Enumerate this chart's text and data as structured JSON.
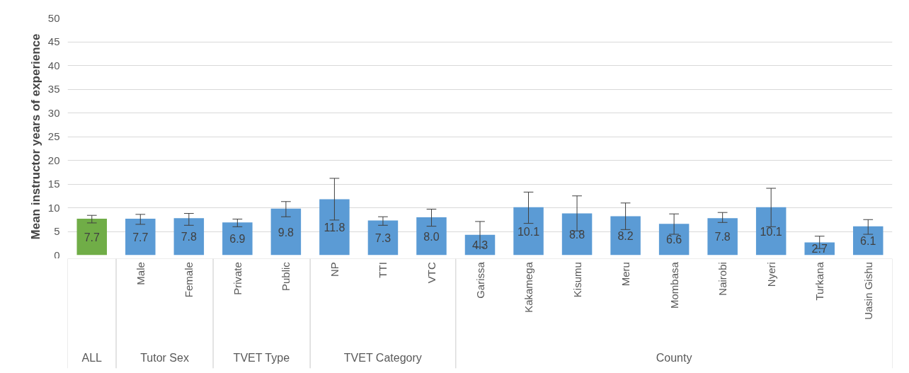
{
  "chart_data": {
    "type": "bar",
    "ylabel": "Mean instructor years of experience",
    "categories": [
      null,
      "Male",
      "Female",
      "Private",
      "Public",
      "NP",
      "TTI",
      "VTC",
      "Garissa",
      "Kakamega",
      "Kisumu",
      "Meru",
      "Mombasa",
      "Nairobi",
      "Nyeri",
      "Turkana",
      "Uasin Gishu"
    ],
    "values": [
      7.7,
      7.7,
      7.8,
      6.9,
      9.8,
      11.8,
      7.3,
      8.0,
      4.3,
      10.1,
      8.8,
      8.2,
      6.6,
      7.8,
      10.1,
      2.7,
      6.1
    ],
    "value_labels": [
      "7.7",
      "7.7",
      "7.8",
      "6.9",
      "9.8",
      "11.8",
      "7.3",
      "8.0",
      "4.3",
      "10.1",
      "8.8",
      "8.2",
      "6.6",
      "7.8",
      "10.1",
      "2.7",
      "6.1"
    ],
    "colors": [
      "#70ad47",
      "#5b9bd5",
      "#5b9bd5",
      "#5b9bd5",
      "#5b9bd5",
      "#5b9bd5",
      "#5b9bd5",
      "#5b9bd5",
      "#5b9bd5",
      "#5b9bd5",
      "#5b9bd5",
      "#5b9bd5",
      "#5b9bd5",
      "#5b9bd5",
      "#5b9bd5",
      "#5b9bd5",
      "#5b9bd5"
    ],
    "errors": [
      [
        6.8,
        8.4
      ],
      [
        6.5,
        8.6
      ],
      [
        6.3,
        8.8
      ],
      [
        6.0,
        7.6
      ],
      [
        8.1,
        11.3
      ],
      [
        7.4,
        16.2
      ],
      [
        6.3,
        8.1
      ],
      [
        6.1,
        9.7
      ],
      [
        1.7,
        7.1
      ],
      [
        6.7,
        13.3
      ],
      [
        5.1,
        12.5
      ],
      [
        5.4,
        11.0
      ],
      [
        4.4,
        8.7
      ],
      [
        6.9,
        9.0
      ],
      [
        6.0,
        14.1
      ],
      [
        1.4,
        4.0
      ],
      [
        4.4,
        7.5
      ]
    ],
    "ylim": [
      0,
      50
    ],
    "yticks": [
      0,
      5,
      10,
      15,
      20,
      25,
      30,
      35,
      40,
      45,
      50
    ],
    "grid": "y",
    "annotations": [
      "ALL",
      "Tutor Sex",
      "TVET Type",
      "TVET Category",
      "County"
    ]
  }
}
